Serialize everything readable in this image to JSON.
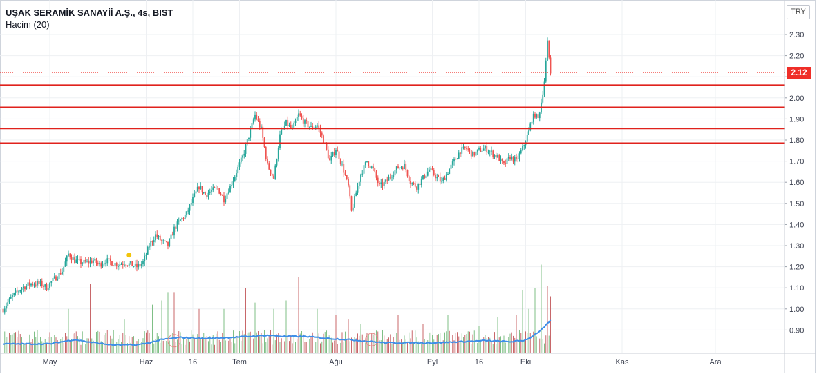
{
  "legend": {
    "title": "UŞAK SERAMİK SANAYİİ A.Ş., 4s, BIST",
    "volume_label": "Hacim (20)"
  },
  "currency_button": "TRY",
  "last_price_label": "2.12",
  "colors": {
    "up": "#26a69a",
    "down": "#ef5350",
    "level_line": "#e0221c",
    "volume_ma": "#3d8ee8",
    "price_tag": "#ef2e28",
    "grid": "#eef0f3"
  },
  "chart_data": {
    "type": "candlestick",
    "title": "UŞAK SERAMİK SANAYİİ A.Ş., 4s, BIST",
    "y_axis": {
      "ticks": [
        "2.30",
        "2.20",
        "2.10",
        "2.00",
        "1.90",
        "1.80",
        "1.70",
        "1.60",
        "1.50",
        "1.40",
        "1.30",
        "1.20",
        "1.10",
        "1.00",
        "0.90"
      ],
      "ylim": [
        0.8,
        2.35
      ],
      "position": "right"
    },
    "x_axis": {
      "ticks": [
        {
          "label": "May",
          "day": 0
        },
        {
          "label": "Haz",
          "day": 31
        },
        {
          "label": "16",
          "day": 46
        },
        {
          "label": "Tem",
          "day": 61
        },
        {
          "label": "Ağu",
          "day": 92
        },
        {
          "label": "Eyl",
          "day": 123
        },
        {
          "label": "16",
          "day": 138
        },
        {
          "label": "Eki",
          "day": 153
        },
        {
          "label": "Kas",
          "day": 184
        },
        {
          "label": "Ara",
          "day": 214
        }
      ]
    },
    "horizontal_levels": [
      2.06,
      1.955,
      1.855,
      1.785
    ],
    "last_price": 2.12,
    "highlight_marker": {
      "day": 25.5,
      "price": 1.255
    },
    "price_keypoints": [
      [
        -15,
        1.0
      ],
      [
        -12,
        1.06
      ],
      [
        -9,
        1.1
      ],
      [
        -6,
        1.12
      ],
      [
        -3,
        1.12
      ],
      [
        -1,
        1.1
      ],
      [
        0,
        1.12
      ],
      [
        2,
        1.15
      ],
      [
        4,
        1.18
      ],
      [
        6,
        1.26
      ],
      [
        8,
        1.23
      ],
      [
        10,
        1.22
      ],
      [
        12,
        1.22
      ],
      [
        14,
        1.23
      ],
      [
        16,
        1.21
      ],
      [
        18,
        1.23
      ],
      [
        20,
        1.22
      ],
      [
        22,
        1.21
      ],
      [
        24,
        1.22
      ],
      [
        26,
        1.21
      ],
      [
        28,
        1.2
      ],
      [
        30,
        1.22
      ],
      [
        32,
        1.3
      ],
      [
        34,
        1.35
      ],
      [
        36,
        1.32
      ],
      [
        38,
        1.3
      ],
      [
        40,
        1.38
      ],
      [
        42,
        1.42
      ],
      [
        44,
        1.45
      ],
      [
        46,
        1.52
      ],
      [
        48,
        1.58
      ],
      [
        50,
        1.54
      ],
      [
        52,
        1.56
      ],
      [
        54,
        1.57
      ],
      [
        56,
        1.52
      ],
      [
        58,
        1.58
      ],
      [
        60,
        1.65
      ],
      [
        62,
        1.72
      ],
      [
        64,
        1.82
      ],
      [
        66,
        1.92
      ],
      [
        68,
        1.85
      ],
      [
        70,
        1.68
      ],
      [
        72,
        1.62
      ],
      [
        74,
        1.82
      ],
      [
        76,
        1.88
      ],
      [
        78,
        1.85
      ],
      [
        80,
        1.92
      ],
      [
        82,
        1.88
      ],
      [
        84,
        1.86
      ],
      [
        86,
        1.87
      ],
      [
        88,
        1.8
      ],
      [
        90,
        1.7
      ],
      [
        92,
        1.76
      ],
      [
        94,
        1.68
      ],
      [
        96,
        1.58
      ],
      [
        97,
        1.46
      ],
      [
        98,
        1.52
      ],
      [
        100,
        1.64
      ],
      [
        102,
        1.7
      ],
      [
        104,
        1.66
      ],
      [
        106,
        1.58
      ],
      [
        108,
        1.6
      ],
      [
        110,
        1.64
      ],
      [
        112,
        1.67
      ],
      [
        114,
        1.68
      ],
      [
        116,
        1.6
      ],
      [
        118,
        1.58
      ],
      [
        120,
        1.62
      ],
      [
        122,
        1.66
      ],
      [
        124,
        1.63
      ],
      [
        126,
        1.6
      ],
      [
        128,
        1.65
      ],
      [
        130,
        1.7
      ],
      [
        132,
        1.75
      ],
      [
        134,
        1.76
      ],
      [
        136,
        1.73
      ],
      [
        138,
        1.75
      ],
      [
        140,
        1.76
      ],
      [
        142,
        1.74
      ],
      [
        144,
        1.72
      ],
      [
        146,
        1.68
      ],
      [
        148,
        1.72
      ],
      [
        150,
        1.7
      ],
      [
        152,
        1.76
      ],
      [
        154,
        1.84
      ],
      [
        155,
        1.9
      ],
      [
        156,
        1.92
      ],
      [
        157,
        1.9
      ],
      [
        158,
        1.98
      ],
      [
        159,
        2.08
      ],
      [
        160,
        2.26
      ],
      [
        161,
        2.12
      ]
    ],
    "volume_ma_keypoints": [
      [
        -15,
        0.835
      ],
      [
        0,
        0.835
      ],
      [
        8,
        0.855
      ],
      [
        12,
        0.845
      ],
      [
        20,
        0.83
      ],
      [
        28,
        0.83
      ],
      [
        32,
        0.84
      ],
      [
        36,
        0.855
      ],
      [
        42,
        0.865
      ],
      [
        50,
        0.86
      ],
      [
        58,
        0.865
      ],
      [
        64,
        0.87
      ],
      [
        70,
        0.875
      ],
      [
        76,
        0.87
      ],
      [
        82,
        0.87
      ],
      [
        90,
        0.86
      ],
      [
        96,
        0.855
      ],
      [
        100,
        0.85
      ],
      [
        108,
        0.84
      ],
      [
        116,
        0.84
      ],
      [
        124,
        0.84
      ],
      [
        132,
        0.845
      ],
      [
        140,
        0.85
      ],
      [
        148,
        0.845
      ],
      [
        152,
        0.85
      ],
      [
        154,
        0.86
      ],
      [
        156,
        0.88
      ],
      [
        158,
        0.9
      ],
      [
        160,
        0.93
      ],
      [
        161,
        0.945
      ]
    ],
    "volume_spikes": [
      [
        6,
        1.0
      ],
      [
        13,
        1.12
      ],
      [
        24,
        0.95
      ],
      [
        33,
        1.02
      ],
      [
        36,
        1.04
      ],
      [
        38,
        1.08
      ],
      [
        40,
        1.08
      ],
      [
        48,
        1.0
      ],
      [
        56,
        1.0
      ],
      [
        63,
        1.1
      ],
      [
        66,
        1.03
      ],
      [
        72,
        1.0
      ],
      [
        76,
        1.04
      ],
      [
        80,
        1.15
      ],
      [
        86,
        1.0
      ],
      [
        92,
        0.97
      ],
      [
        96,
        0.95
      ],
      [
        100,
        0.93
      ],
      [
        112,
        0.97
      ],
      [
        120,
        0.93
      ],
      [
        128,
        0.97
      ],
      [
        138,
        0.92
      ],
      [
        144,
        0.96
      ],
      [
        150,
        0.97
      ],
      [
        152,
        1.09
      ],
      [
        154,
        1.0
      ],
      [
        156,
        1.1
      ],
      [
        158,
        1.21
      ],
      [
        160,
        1.11
      ],
      [
        161,
        1.06
      ]
    ]
  }
}
